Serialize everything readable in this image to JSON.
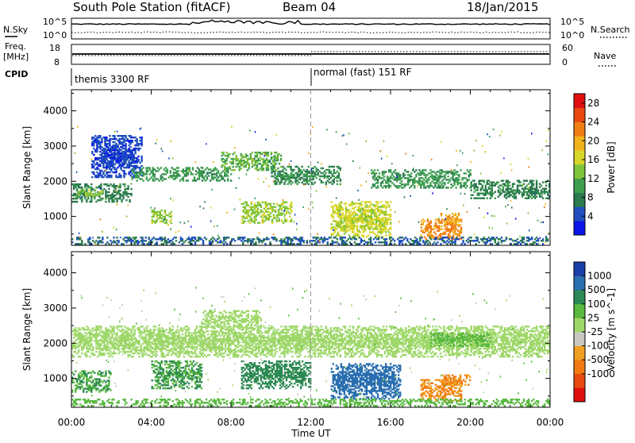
{
  "header": {
    "station": "South Pole Station (fitACF)",
    "beam": "Beam 04",
    "date": "18/Jan/2015"
  },
  "top_panels": {
    "nsky_label": "N.Sky",
    "nsky_ticks": [
      "10^5",
      "10^0"
    ],
    "nsearch_label": "N.Search",
    "nsearch_ticks": [
      "10^5",
      "10^0"
    ],
    "freq_label_1": "Freq.",
    "freq_label_2": "[MHz]",
    "freq_ticks": [
      "18",
      "8"
    ],
    "nave_label": "Nave",
    "nave_ticks": [
      "60",
      "0"
    ],
    "cpid_label": "CPID",
    "cpid_segments": [
      {
        "label": "themis 3300 RF",
        "start": "00:00"
      },
      {
        "label": "normal (fast) 151 RF",
        "start": "12:00"
      }
    ]
  },
  "chart_data": [
    {
      "type": "heatmap",
      "quantity": "Power [dB]",
      "xlabel": "",
      "ylabel": "Slant Range [km]",
      "x_ticks": [
        "00:00",
        "04:00",
        "08:00",
        "12:00",
        "16:00",
        "20:00",
        "00:00"
      ],
      "xlim_hours": [
        0,
        24
      ],
      "y_ticks": [
        1000,
        2000,
        3000,
        4000
      ],
      "ylim": [
        180,
        4600
      ],
      "colorbar": {
        "label": "Power [dB]",
        "ticks": [
          4,
          8,
          12,
          16,
          20,
          24,
          28
        ],
        "range": [
          0,
          30
        ],
        "colors": [
          "#0a14e8",
          "#1f4fbf",
          "#2c7a4f",
          "#3d9e50",
          "#7fc33a",
          "#d8d628",
          "#f2b21c",
          "#f07d14",
          "#e8470f",
          "#e01010"
        ]
      },
      "regions": [
        {
          "t": [
            0.0,
            3.0
          ],
          "r": [
            1400,
            1900
          ],
          "level": 8
        },
        {
          "t": [
            0.2,
            1.5
          ],
          "r": [
            1550,
            1750
          ],
          "level": 14
        },
        {
          "t": [
            1.0,
            3.5
          ],
          "r": [
            2100,
            3300
          ],
          "level": 4
        },
        {
          "t": [
            3.0,
            8.0
          ],
          "r": [
            2000,
            2400
          ],
          "level": 10
        },
        {
          "t": [
            7.5,
            10.5
          ],
          "r": [
            2300,
            2800
          ],
          "level": 12
        },
        {
          "t": [
            10.0,
            13.5
          ],
          "r": [
            1900,
            2400
          ],
          "level": 9
        },
        {
          "t": [
            15.0,
            20.0
          ],
          "r": [
            1800,
            2300
          ],
          "level": 10
        },
        {
          "t": [
            20.0,
            24.0
          ],
          "r": [
            1500,
            2000
          ],
          "level": 8
        },
        {
          "t": [
            4.0,
            5.0
          ],
          "r": [
            750,
            1200
          ],
          "level": 14
        },
        {
          "t": [
            8.5,
            11.0
          ],
          "r": [
            800,
            1400
          ],
          "level": 14
        },
        {
          "t": [
            13.0,
            16.0
          ],
          "r": [
            400,
            1400
          ],
          "level": 16
        },
        {
          "t": [
            17.5,
            19.5
          ],
          "r": [
            350,
            900
          ],
          "level": 22
        },
        {
          "t": [
            18.5,
            19.5
          ],
          "r": [
            700,
            1100
          ],
          "level": 20
        },
        {
          "t": [
            0.0,
            24.0
          ],
          "r": [
            200,
            420
          ],
          "level": 6
        }
      ]
    },
    {
      "type": "heatmap",
      "quantity": "Velocity [m s^-1]",
      "xlabel": "Time UT",
      "ylabel": "Slant Range [km]",
      "x_ticks": [
        "00:00",
        "04:00",
        "08:00",
        "12:00",
        "16:00",
        "20:00",
        "00:00"
      ],
      "xlim_hours": [
        0,
        24
      ],
      "y_ticks": [
        1000,
        2000,
        3000,
        4000
      ],
      "ylim": [
        180,
        4600
      ],
      "colorbar": {
        "label": "Velocity [m s^-1]",
        "ticks": [
          1000,
          500,
          100,
          25,
          -25,
          -100,
          -500,
          -1000
        ],
        "colors": [
          "#1a3fa8",
          "#2a6fb0",
          "#2e8a55",
          "#58b840",
          "#9fd86a",
          "#c8c8c0",
          "#f0a020",
          "#f07a10",
          "#e84a10",
          "#e01010"
        ]
      },
      "regions": [
        {
          "t": [
            0.0,
            24.0
          ],
          "r": [
            1600,
            2500
          ],
          "level": 0
        },
        {
          "t": [
            6.5,
            9.5
          ],
          "r": [
            2400,
            2900
          ],
          "level": 0
        },
        {
          "t": [
            0.0,
            2.0
          ],
          "r": [
            600,
            1200
          ],
          "level": 100
        },
        {
          "t": [
            4.0,
            6.5
          ],
          "r": [
            700,
            1500
          ],
          "level": 100
        },
        {
          "t": [
            8.5,
            12.0
          ],
          "r": [
            700,
            1500
          ],
          "level": 120
        },
        {
          "t": [
            13.0,
            16.5
          ],
          "r": [
            400,
            1400
          ],
          "level": 600
        },
        {
          "t": [
            17.5,
            19.5
          ],
          "r": [
            350,
            950
          ],
          "level": -500
        },
        {
          "t": [
            18.5,
            20.0
          ],
          "r": [
            800,
            1100
          ],
          "level": -500
        },
        {
          "t": [
            18.0,
            21.0
          ],
          "r": [
            1900,
            2300
          ],
          "level": 60
        },
        {
          "t": [
            0.0,
            24.0
          ],
          "r": [
            200,
            420
          ],
          "level": 30
        }
      ]
    }
  ]
}
